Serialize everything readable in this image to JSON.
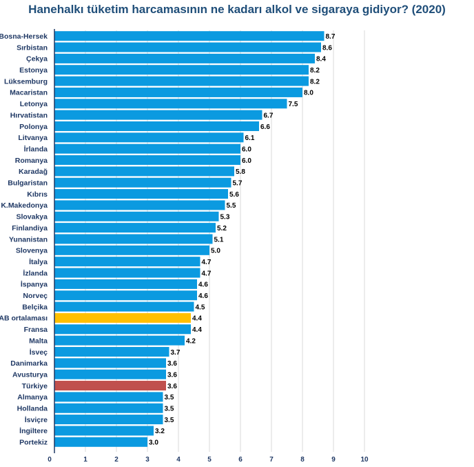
{
  "chart_data": {
    "type": "bar",
    "orientation": "horizontal",
    "title": "Hanehalkı tüketim harcamasının ne kadarı alkol ve sigaraya gidiyor? (2020)",
    "xlabel": "",
    "ylabel": "",
    "xlim": [
      0,
      10
    ],
    "x_ticks": [
      "0",
      "1",
      "2",
      "3",
      "4",
      "5",
      "6",
      "7",
      "8",
      "9",
      "10"
    ],
    "grid": true,
    "categories": [
      "Bosna-Hersek",
      "Sırbistan",
      "Çekya",
      "Estonya",
      "Lüksemburg",
      "Macaristan",
      "Letonya",
      "Hırvatistan",
      "Polonya",
      "Litvanya",
      "İrlanda",
      "Romanya",
      "Karadağ",
      "Bulgaristan",
      "Kıbrıs",
      "K.Makedonya",
      "Slovakya",
      "Finlandiya",
      "Yunanistan",
      "Slovenya",
      "İtalya",
      "İzlanda",
      "İspanya",
      "Norveç",
      "Belçika",
      "AB ortalaması",
      "Fransa",
      "Malta",
      "İsveç",
      "Danimarka",
      "Avusturya",
      "Türkiye",
      "Almanya",
      "Hollanda",
      "İsviçre",
      "İngiltere",
      "Portekiz"
    ],
    "values": [
      8.7,
      8.6,
      8.4,
      8.2,
      8.2,
      8.0,
      7.5,
      6.7,
      6.6,
      6.1,
      6.0,
      6.0,
      5.8,
      5.7,
      5.6,
      5.5,
      5.3,
      5.2,
      5.1,
      5.0,
      4.7,
      4.7,
      4.6,
      4.6,
      4.5,
      4.4,
      4.4,
      4.2,
      3.7,
      3.6,
      3.6,
      3.6,
      3.5,
      3.5,
      3.5,
      3.2,
      3.0
    ],
    "value_labels": [
      "8.7",
      "8.6",
      "8.4",
      "8.2",
      "8.2",
      "8.0",
      "7.5",
      "6.7",
      "6.6",
      "6.1",
      "6.0",
      "6.0",
      "5.8",
      "5.7",
      "5.6",
      "5.5",
      "5.3",
      "5.2",
      "5.1",
      "5.0",
      "4.7",
      "4.7",
      "4.6",
      "4.6",
      "4.5",
      "4.4",
      "4.4",
      "4.2",
      "3.7",
      "3.6",
      "3.6",
      "3.6",
      "3.5",
      "3.5",
      "3.5",
      "3.2",
      "3.0"
    ],
    "colors": {
      "default": "#0b9ae0",
      "highlights": {
        "AB ortalaması": "#ffc000",
        "Türkiye": "#c0504d"
      }
    }
  }
}
